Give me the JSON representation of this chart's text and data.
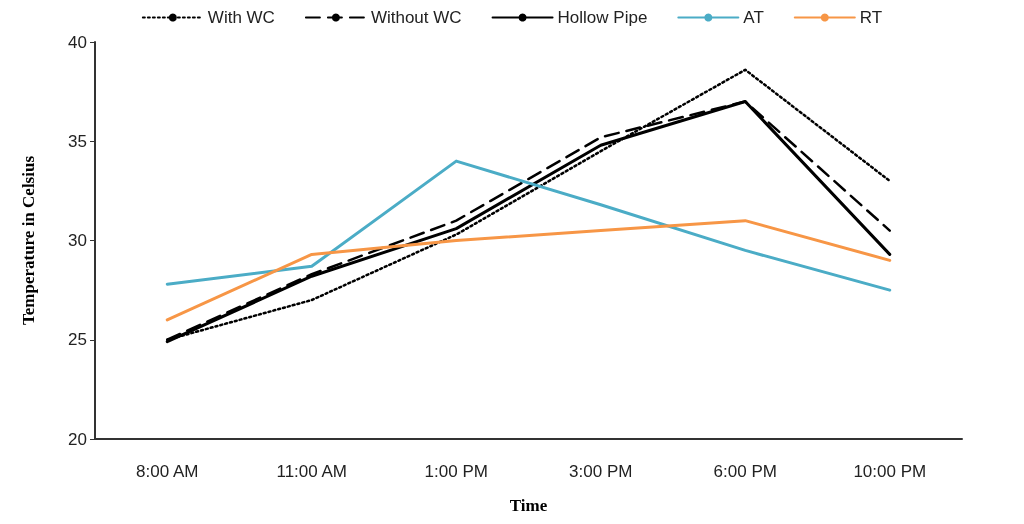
{
  "chart_data": {
    "type": "line",
    "xlabel": "Time",
    "ylabel": "Temperature in Celsius",
    "categories": [
      "8:00 AM",
      "11:00 AM",
      "1:00 PM",
      "3:00 PM",
      "6:00 PM",
      "10:00 PM"
    ],
    "series": [
      {
        "name": "With WC",
        "color": "#000000",
        "line_style": "dotted",
        "values": [
          25,
          27,
          30.3,
          34.5,
          38.6,
          33
        ]
      },
      {
        "name": "Without WC",
        "color": "#000000",
        "line_style": "dashed",
        "values": [
          25,
          28.3,
          31,
          35.2,
          37,
          30.5
        ]
      },
      {
        "name": "Hollow Pipe",
        "color": "#000000",
        "line_style": "solid",
        "values": [
          24.9,
          28.2,
          30.6,
          34.8,
          37,
          29.3
        ]
      },
      {
        "name": "AT",
        "color": "#4bacc6",
        "line_style": "solid",
        "values": [
          27.8,
          28.7,
          34,
          31.8,
          29.5,
          27.5
        ]
      },
      {
        "name": "RT",
        "color": "#f79646",
        "line_style": "solid",
        "values": [
          26,
          29.3,
          30,
          30.5,
          31,
          29
        ]
      }
    ],
    "ylim": [
      20,
      40
    ],
    "yticks": [
      20,
      25,
      30,
      35,
      40
    ],
    "grid": false,
    "legend": "top",
    "marker": "none"
  }
}
